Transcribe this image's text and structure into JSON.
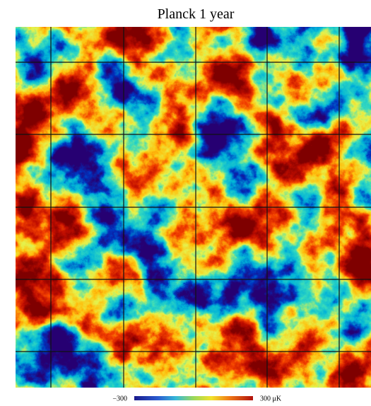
{
  "title": "Planck 1 year",
  "colorbar": {
    "ticks": [
      {
        "value": -300,
        "label": "−300"
      },
      {
        "value": 300,
        "label": "300 μK"
      }
    ]
  }
}
